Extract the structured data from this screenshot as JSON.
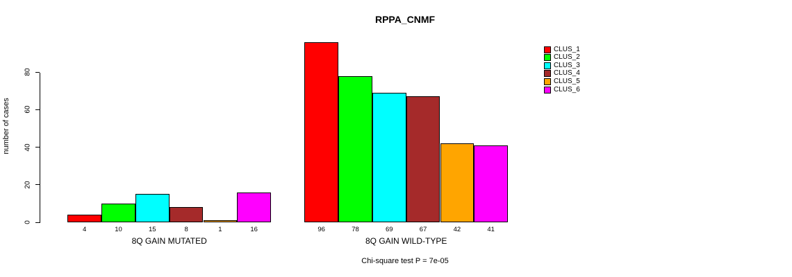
{
  "chart_data": {
    "type": "bar",
    "title": "RPPA_CNMF",
    "ylabel": "number of cases",
    "xlabel": "",
    "ylim": [
      0,
      96
    ],
    "yticks": [
      0,
      20,
      40,
      60,
      80
    ],
    "grid": false,
    "background": "#FFFFFF",
    "axis_color": "#000000",
    "categories": [
      "8Q GAIN MUTATED",
      "8Q GAIN WILD-TYPE"
    ],
    "series": [
      {
        "name": "CLUS_1",
        "color": "#FF0000",
        "values": [
          4,
          96
        ]
      },
      {
        "name": "CLUS_2",
        "color": "#00FF00",
        "values": [
          10,
          78
        ]
      },
      {
        "name": "CLUS_3",
        "color": "#00FFFF",
        "values": [
          15,
          69
        ]
      },
      {
        "name": "CLUS_4",
        "color": "#A52A2A",
        "values": [
          8,
          67
        ]
      },
      {
        "name": "CLUS_5",
        "color": "#FFA500",
        "values": [
          1,
          42
        ]
      },
      {
        "name": "CLUS_6",
        "color": "#FF00FF",
        "values": [
          16,
          41
        ]
      }
    ],
    "bar_value_labels_shown": true,
    "annotation": "Chi-square test P = 7e-05",
    "legend": {
      "position": "top-right",
      "entries": [
        "CLUS_1",
        "CLUS_2",
        "CLUS_3",
        "CLUS_4",
        "CLUS_5",
        "CLUS_6"
      ]
    }
  }
}
